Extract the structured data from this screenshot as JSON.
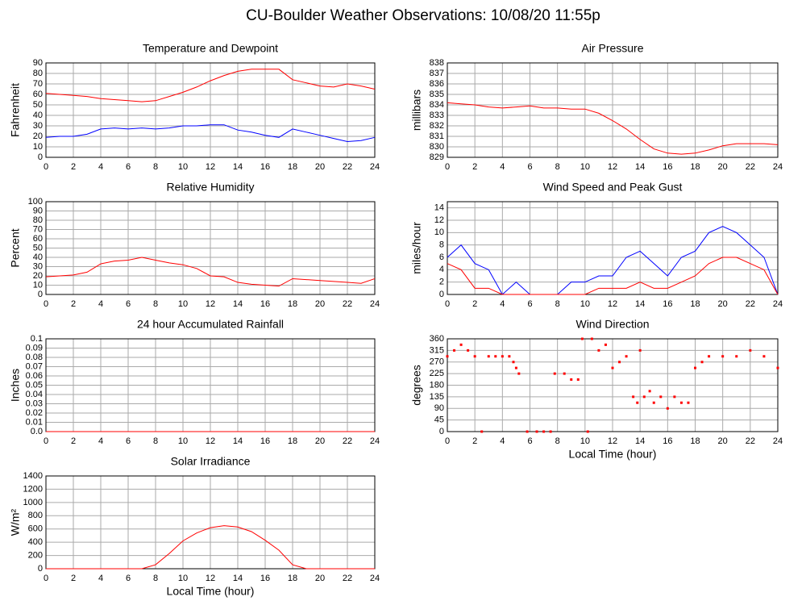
{
  "title": "CU-Boulder Weather Observations: 10/08/20 11:55p",
  "chart_data": [
    {
      "type": "line",
      "title": "Temperature and Dewpoint",
      "y_label": "Fahrenheit",
      "x": [
        0,
        1,
        2,
        3,
        4,
        5,
        6,
        7,
        8,
        9,
        10,
        11,
        12,
        13,
        14,
        15,
        16,
        17,
        18,
        19,
        20,
        21,
        22,
        23,
        24
      ],
      "series": [
        {
          "color": "#ff0000",
          "values": [
            61,
            60,
            59,
            58,
            56,
            55,
            54,
            53,
            54,
            58,
            62,
            67,
            73,
            78,
            82,
            84,
            84,
            84,
            74,
            71,
            68,
            67,
            70,
            68,
            65
          ]
        },
        {
          "color": "#0000ff",
          "values": [
            19,
            20,
            20,
            22,
            27,
            28,
            27,
            28,
            27,
            28,
            30,
            30,
            31,
            31,
            26,
            24,
            21,
            19,
            27,
            24,
            21,
            18,
            15,
            16,
            19
          ]
        }
      ],
      "xlim": [
        0,
        24
      ],
      "ylim": [
        0,
        90
      ],
      "xticks": [
        0,
        2,
        4,
        6,
        8,
        10,
        12,
        14,
        16,
        18,
        20,
        22,
        24
      ],
      "yticks": [
        0,
        10,
        20,
        30,
        40,
        50,
        60,
        70,
        80,
        90
      ],
      "grid": true
    },
    {
      "type": "line",
      "title": "Air Pressure",
      "y_label": "millibars",
      "x": [
        0,
        1,
        2,
        3,
        4,
        5,
        6,
        7,
        8,
        9,
        10,
        11,
        12,
        13,
        14,
        15,
        16,
        17,
        18,
        19,
        20,
        21,
        22,
        23,
        24
      ],
      "series": [
        {
          "color": "#ff0000",
          "values": [
            834.2,
            834.1,
            834.0,
            833.8,
            833.7,
            833.8,
            833.9,
            833.7,
            833.7,
            833.6,
            833.6,
            833.2,
            832.5,
            831.7,
            830.7,
            829.8,
            829.4,
            829.3,
            829.4,
            829.7,
            830.1,
            830.3,
            830.3,
            830.3,
            830.2
          ]
        }
      ],
      "xlim": [
        0,
        24
      ],
      "ylim": [
        829,
        838
      ],
      "xticks": [
        0,
        2,
        4,
        6,
        8,
        10,
        12,
        14,
        16,
        18,
        20,
        22,
        24
      ],
      "yticks": [
        829,
        830,
        831,
        832,
        833,
        834,
        835,
        836,
        837,
        838
      ],
      "grid": true
    },
    {
      "type": "line",
      "title": "Relative Humidity",
      "y_label": "Percent",
      "x": [
        0,
        1,
        2,
        3,
        4,
        5,
        6,
        7,
        8,
        9,
        10,
        11,
        12,
        13,
        14,
        15,
        16,
        17,
        18,
        19,
        20,
        21,
        22,
        23,
        24
      ],
      "series": [
        {
          "color": "#ff0000",
          "values": [
            19,
            20,
            21,
            24,
            33,
            36,
            37,
            40,
            37,
            34,
            32,
            28,
            20,
            19,
            13,
            11,
            10,
            9,
            17,
            16,
            15,
            14,
            13,
            12,
            17
          ]
        }
      ],
      "xlim": [
        0,
        24
      ],
      "ylim": [
        0,
        100
      ],
      "xticks": [
        0,
        2,
        4,
        6,
        8,
        10,
        12,
        14,
        16,
        18,
        20,
        22,
        24
      ],
      "yticks": [
        0,
        10,
        20,
        30,
        40,
        50,
        60,
        70,
        80,
        90,
        100
      ],
      "grid": true
    },
    {
      "type": "line",
      "title": "Wind Speed and Peak Gust",
      "y_label": "miles/hour",
      "x": [
        0,
        1,
        2,
        3,
        4,
        5,
        6,
        7,
        8,
        9,
        10,
        11,
        12,
        13,
        14,
        15,
        16,
        17,
        18,
        19,
        20,
        21,
        22,
        23,
        24
      ],
      "series": [
        {
          "color": "#0000ff",
          "values": [
            6,
            8,
            5,
            4,
            0,
            2,
            0,
            0,
            0,
            2,
            2,
            3,
            3,
            6,
            7,
            5,
            3,
            6,
            7,
            10,
            11,
            10,
            8,
            6,
            0
          ]
        },
        {
          "color": "#ff0000",
          "values": [
            5,
            4,
            1,
            1,
            0,
            0,
            0,
            0,
            0,
            0,
            0,
            1,
            1,
            1,
            2,
            1,
            1,
            2,
            3,
            5,
            6,
            6,
            5,
            4,
            0
          ]
        }
      ],
      "xlim": [
        0,
        24
      ],
      "ylim": [
        0,
        15
      ],
      "xticks": [
        0,
        2,
        4,
        6,
        8,
        10,
        12,
        14,
        16,
        18,
        20,
        22,
        24
      ],
      "yticks": [
        0,
        2,
        4,
        6,
        8,
        10,
        12,
        14
      ],
      "grid": true
    },
    {
      "type": "line",
      "title": "24 hour Accumulated Rainfall",
      "y_label": "Inches",
      "x": [
        0,
        24
      ],
      "series": [
        {
          "color": "#ff0000",
          "values": [
            0,
            0
          ]
        }
      ],
      "xlim": [
        0,
        24
      ],
      "ylim": [
        0,
        0.1
      ],
      "xticks": [
        0,
        2,
        4,
        6,
        8,
        10,
        12,
        14,
        16,
        18,
        20,
        22,
        24
      ],
      "yticks": [
        {
          "value": 0,
          "label": "0.0"
        },
        0.01,
        0.02,
        0.03,
        0.04,
        0.05,
        0.06,
        0.07,
        0.08,
        0.09,
        0.1
      ],
      "grid": true
    },
    {
      "type": "scatter",
      "title": "Wind Direction",
      "y_label": "degrees",
      "x_label": "Local Time (hour)",
      "x": [
        0,
        0.5,
        1,
        1.5,
        2,
        2.5,
        3,
        3.5,
        4,
        4.5,
        4.8,
        5,
        5.2,
        5.8,
        6.5,
        7,
        7.5,
        7.8,
        8.5,
        9,
        9.5,
        9.8,
        10.2,
        10.5,
        11,
        11.5,
        12,
        12.5,
        13,
        13.5,
        13.8,
        14,
        14.3,
        14.7,
        15,
        15.5,
        16,
        16.5,
        17,
        17.5,
        18,
        18.5,
        19,
        20,
        21,
        22,
        23,
        24
      ],
      "series": [
        {
          "color": "#ff0000",
          "values": [
            292,
            315,
            337,
            315,
            292,
            0,
            292,
            292,
            292,
            292,
            270,
            247,
            225,
            0,
            0,
            0,
            0,
            225,
            225,
            202,
            202,
            360,
            0,
            360,
            315,
            337,
            247,
            270,
            292,
            135,
            112,
            315,
            135,
            157,
            112,
            135,
            90,
            135,
            112,
            112,
            247,
            270,
            292,
            292,
            292,
            315,
            292,
            247
          ]
        }
      ],
      "xlim": [
        0,
        24
      ],
      "ylim": [
        0,
        360
      ],
      "xticks": [
        0,
        2,
        4,
        6,
        8,
        10,
        12,
        14,
        16,
        18,
        20,
        22,
        24
      ],
      "yticks": [
        0,
        45,
        90,
        135,
        180,
        225,
        270,
        315,
        360
      ],
      "grid": true
    },
    {
      "type": "line",
      "title": "Solar Irradiance",
      "y_label": "W/m²",
      "x_label": "Local Time (hour)",
      "x": [
        0,
        1,
        2,
        3,
        4,
        5,
        6,
        7,
        8,
        9,
        10,
        11,
        12,
        13,
        14,
        15,
        16,
        17,
        18,
        19,
        20,
        21,
        22,
        23,
        24
      ],
      "series": [
        {
          "color": "#ff0000",
          "values": [
            0,
            0,
            0,
            0,
            0,
            0,
            0,
            0,
            60,
            230,
            420,
            540,
            620,
            650,
            630,
            560,
            430,
            280,
            60,
            0,
            0,
            0,
            0,
            0,
            0
          ]
        }
      ],
      "xlim": [
        0,
        24
      ],
      "ylim": [
        0,
        1400
      ],
      "xticks": [
        0,
        2,
        4,
        6,
        8,
        10,
        12,
        14,
        16,
        18,
        20,
        22,
        24
      ],
      "yticks": [
        0,
        200,
        400,
        600,
        800,
        1000,
        1200,
        1400
      ],
      "grid": true
    }
  ]
}
